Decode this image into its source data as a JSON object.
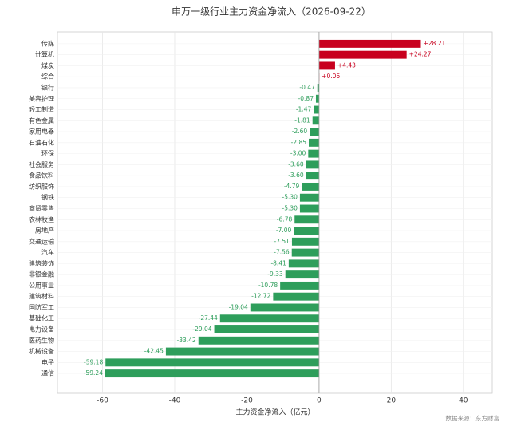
{
  "chart_data": {
    "type": "barh",
    "title": "申万一级行业主力资金净流入（2026-09-22）",
    "x_label": "主力资金净流入（亿元）",
    "source": "数据来源：东方财富",
    "categories": [
      "传媒",
      "计算机",
      "煤炭",
      "综合",
      "银行",
      "美容护理",
      "轻工制造",
      "有色金属",
      "家用电器",
      "石油石化",
      "环保",
      "社会服务",
      "食品饮料",
      "纺织服饰",
      "钢铁",
      "商贸零售",
      "农林牧渔",
      "房地产",
      "交通运输",
      "汽车",
      "建筑装饰",
      "非银金融",
      "公用事业",
      "建筑材料",
      "国防军工",
      "基础化工",
      "电力设备",
      "医药生物",
      "机械设备",
      "电子",
      "通信"
    ],
    "values": [
      28.21,
      24.27,
      4.43,
      0.06,
      -0.47,
      -0.87,
      -1.47,
      -1.81,
      -2.6,
      -2.85,
      -3.0,
      -3.6,
      -3.6,
      -4.79,
      -5.3,
      -5.3,
      -6.78,
      -7.0,
      -7.51,
      -7.56,
      -8.41,
      -9.33,
      -10.78,
      -12.72,
      -19.04,
      -27.44,
      -29.04,
      -33.42,
      -42.45,
      -59.18,
      -59.24
    ],
    "value_labels": [
      "+28.21",
      "+24.27",
      "+4.43",
      "+0.06",
      "-0.47",
      "-0.87",
      "-1.47",
      "-1.81",
      "-2.60",
      "-2.85",
      "-3.00",
      "-3.60",
      "-3.60",
      "-4.79",
      "-5.30",
      "-5.30",
      "-6.78",
      "-7.00",
      "-7.51",
      "-7.56",
      "-8.41",
      "-9.33",
      "-10.78",
      "-12.72",
      "-19.04",
      "-27.44",
      "-29.04",
      "-33.42",
      "-42.45",
      "-59.18",
      "-59.24"
    ],
    "positive_color": "#c8001e",
    "negative_color": "#2e9e5b",
    "xlim": [
      -72.5,
      48
    ],
    "xticks": [
      -60,
      -40,
      -20,
      0,
      20,
      40
    ],
    "grid": true
  }
}
